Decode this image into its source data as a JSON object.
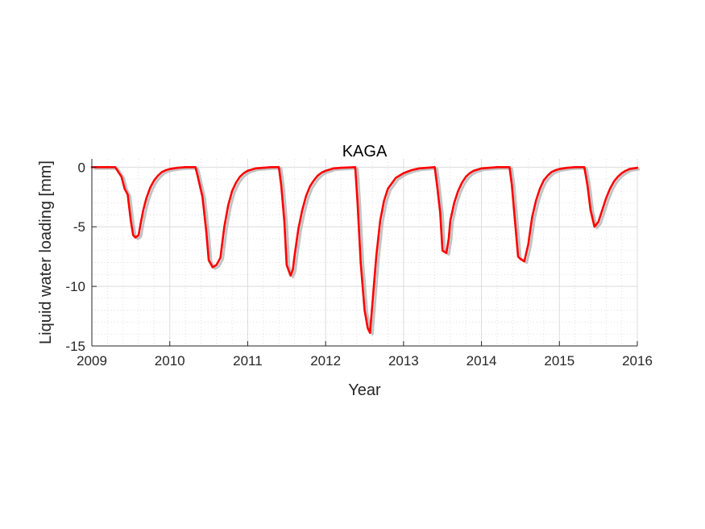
{
  "chart_data": {
    "type": "line",
    "title": "KAGA",
    "xlabel": "Year",
    "ylabel": "Liquid water loading [mm]",
    "xlim": [
      2009,
      2016
    ],
    "ylim": [
      -15,
      0.7
    ],
    "xticks": [
      2009,
      2010,
      2011,
      2012,
      2013,
      2014,
      2015,
      2016
    ],
    "xtick_labels": [
      "2009",
      "2010",
      "2011",
      "2012",
      "2013",
      "2014",
      "2015",
      "2016"
    ],
    "yticks": [
      0,
      -5,
      -10,
      -15
    ],
    "ytick_labels": [
      "0",
      "-5",
      "-10",
      "-15"
    ],
    "grid": true,
    "minor_grid": true,
    "colors": {
      "primary": "#ff0000",
      "band": "#b4b4b4"
    },
    "series": [
      {
        "color": "#ff0000",
        "x": [
          2009.0,
          2009.3,
          2009.38,
          2009.42,
          2009.46,
          2009.5,
          2009.53,
          2009.56,
          2009.6,
          2009.63,
          2009.66,
          2009.7,
          2009.75,
          2009.8,
          2009.85,
          2009.9,
          2009.95,
          2010.0,
          2010.1,
          2010.2,
          2010.33,
          2010.36,
          2010.42,
          2010.47,
          2010.5,
          2010.55,
          2010.6,
          2010.65,
          2010.7,
          2010.75,
          2010.8,
          2010.85,
          2010.9,
          2010.95,
          2011.0,
          2011.1,
          2011.2,
          2011.3,
          2011.4,
          2011.43,
          2011.47,
          2011.5,
          2011.55,
          2011.58,
          2011.6,
          2011.65,
          2011.7,
          2011.75,
          2011.8,
          2011.85,
          2011.9,
          2011.95,
          2012.0,
          2012.1,
          2012.2,
          2012.38,
          2012.41,
          2012.45,
          2012.5,
          2012.54,
          2012.57,
          2012.6,
          2012.65,
          2012.7,
          2012.75,
          2012.8,
          2012.9,
          2013.0,
          2013.1,
          2013.2,
          2013.3,
          2013.4,
          2013.43,
          2013.47,
          2013.5,
          2013.55,
          2013.58,
          2013.6,
          2013.65,
          2013.7,
          2013.75,
          2013.8,
          2013.85,
          2013.9,
          2013.95,
          2014.0,
          2014.1,
          2014.2,
          2014.36,
          2014.39,
          2014.43,
          2014.47,
          2014.5,
          2014.55,
          2014.6,
          2014.65,
          2014.7,
          2014.75,
          2014.8,
          2014.85,
          2014.9,
          2014.95,
          2015.0,
          2015.1,
          2015.2,
          2015.32,
          2015.36,
          2015.4,
          2015.45,
          2015.5,
          2015.55,
          2015.6,
          2015.65,
          2015.7,
          2015.75,
          2015.8,
          2015.85,
          2015.9,
          2015.95,
          2016.0
        ],
        "y": [
          0.0,
          0.0,
          -0.8,
          -1.8,
          -2.3,
          -4.5,
          -5.7,
          -5.9,
          -5.7,
          -4.6,
          -3.6,
          -2.6,
          -1.7,
          -1.1,
          -0.7,
          -0.4,
          -0.25,
          -0.15,
          -0.05,
          0.0,
          0.0,
          -0.8,
          -2.5,
          -5.5,
          -7.8,
          -8.4,
          -8.2,
          -7.6,
          -5.0,
          -3.2,
          -2.0,
          -1.3,
          -0.8,
          -0.5,
          -0.3,
          -0.1,
          -0.05,
          0.0,
          0.0,
          -1.5,
          -4.5,
          -8.2,
          -9.1,
          -8.6,
          -7.5,
          -5.2,
          -3.6,
          -2.4,
          -1.6,
          -1.1,
          -0.7,
          -0.45,
          -0.3,
          -0.1,
          -0.05,
          0.0,
          -3.0,
          -8.0,
          -12.0,
          -13.5,
          -13.9,
          -11.5,
          -7.5,
          -4.5,
          -2.8,
          -1.8,
          -0.9,
          -0.5,
          -0.25,
          -0.1,
          -0.05,
          0.0,
          -1.5,
          -3.8,
          -7.0,
          -7.2,
          -6.0,
          -4.5,
          -3.0,
          -2.0,
          -1.3,
          -0.8,
          -0.5,
          -0.3,
          -0.2,
          -0.1,
          -0.05,
          0.0,
          0.0,
          -1.5,
          -4.5,
          -7.5,
          -7.7,
          -7.9,
          -6.5,
          -4.2,
          -2.8,
          -1.8,
          -1.1,
          -0.7,
          -0.4,
          -0.25,
          -0.15,
          -0.05,
          0.0,
          0.0,
          -1.5,
          -3.6,
          -5.0,
          -4.6,
          -3.6,
          -2.6,
          -1.8,
          -1.2,
          -0.8,
          -0.5,
          -0.3,
          -0.15,
          -0.1,
          -0.05
        ]
      }
    ]
  }
}
